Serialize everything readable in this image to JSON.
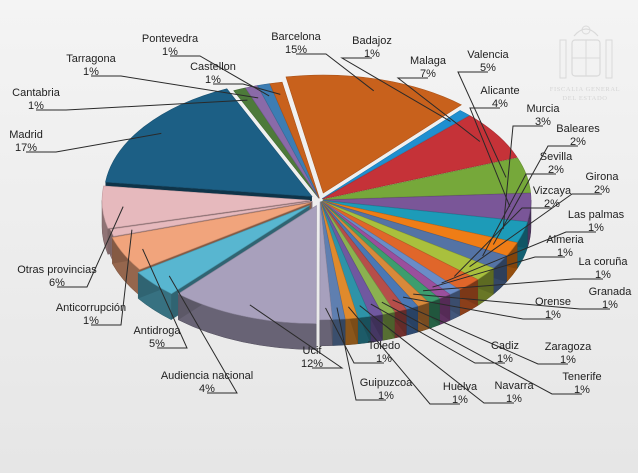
{
  "watermark": {
    "line1": "FISCALIA GENERAL",
    "line2": "DEL ESTADO"
  },
  "colors": {
    "background": "#ececec",
    "Barcelona": "#c8611c",
    "Madrid": "#1c5f85",
    "Ucif": "#a8a0bc",
    "Otras provincias": "#e6b9bd",
    "Antidroga": "#f1a47c",
    "Audiencia nacional": "#58b6d0",
    "Malaga": "#c53238",
    "Valencia": "#76a83a",
    "Alicante": "#7a5698",
    "Murcia": "#1d9bb8",
    "Baleares": "#ef7d16",
    "Sevilla": "#5473a5",
    "Girona": "#a9c03d"
  },
  "chart_data": {
    "type": "pie",
    "title": "",
    "units": "%",
    "slices": [
      {
        "label": "Barcelona",
        "value": 15
      },
      {
        "label": "Badajoz",
        "value": 1
      },
      {
        "label": "Malaga",
        "value": 7
      },
      {
        "label": "Valencia",
        "value": 5
      },
      {
        "label": "Alicante",
        "value": 4
      },
      {
        "label": "Murcia",
        "value": 3
      },
      {
        "label": "Baleares",
        "value": 2
      },
      {
        "label": "Sevilla",
        "value": 2
      },
      {
        "label": "Girona",
        "value": 2
      },
      {
        "label": "Vizcaya",
        "value": 2
      },
      {
        "label": "Las palmas",
        "value": 1
      },
      {
        "label": "Almeria",
        "value": 1
      },
      {
        "label": "La coruña",
        "value": 1
      },
      {
        "label": "Granada",
        "value": 1
      },
      {
        "label": "Orense",
        "value": 1
      },
      {
        "label": "Zaragoza",
        "value": 1
      },
      {
        "label": "Tenerife",
        "value": 1
      },
      {
        "label": "Cadiz",
        "value": 1
      },
      {
        "label": "Navarra",
        "value": 1
      },
      {
        "label": "Huelva",
        "value": 1
      },
      {
        "label": "Guipuzcoa",
        "value": 1
      },
      {
        "label": "Toledo",
        "value": 1
      },
      {
        "label": "Ucif",
        "value": 12
      },
      {
        "label": "Audiencia nacional",
        "value": 4
      },
      {
        "label": "Antidroga",
        "value": 5
      },
      {
        "label": "Anticorrupción",
        "value": 1
      },
      {
        "label": "Otras provincias",
        "value": 6
      },
      {
        "label": "Madrid",
        "value": 17
      },
      {
        "label": "Cantabria",
        "value": 1
      },
      {
        "label": "Tarragona",
        "value": 1
      },
      {
        "label": "Pontevedra",
        "value": 1
      },
      {
        "label": "Castellon",
        "value": 1
      }
    ]
  }
}
